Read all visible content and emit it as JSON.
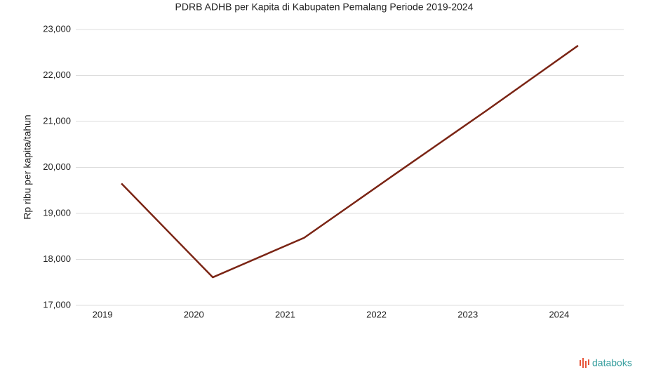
{
  "chart_data": {
    "type": "line",
    "title": "PDRB ADHB per Kapita di Kabupaten Pemalang Periode 2019-2024",
    "y_label": "Rp ribu per kapita/tahun",
    "categories": [
      "2019",
      "2020",
      "2021",
      "2022",
      "2023",
      "2024"
    ],
    "series": [
      {
        "name": "PDRB ADHB per Kapita",
        "color": "#7a2414",
        "values": [
          19650,
          17610,
          18470,
          19860,
          21240,
          22650
        ]
      }
    ],
    "ylim": [
      17000,
      23000
    ],
    "yticks": [
      {
        "value": 17000,
        "label": "17,000"
      },
      {
        "value": 18000,
        "label": "18,000"
      },
      {
        "value": 19000,
        "label": "19,000"
      },
      {
        "value": 20000,
        "label": "20,000"
      },
      {
        "value": 21000,
        "label": "21,000"
      },
      {
        "value": 22000,
        "label": "22,000"
      },
      {
        "value": 23000,
        "label": "23,000"
      }
    ],
    "grid": true
  },
  "brand": "databoks"
}
